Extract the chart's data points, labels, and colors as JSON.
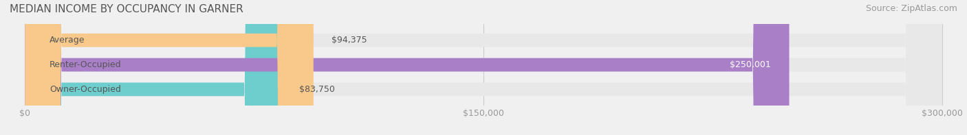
{
  "title": "MEDIAN INCOME BY OCCUPANCY IN GARNER",
  "source": "Source: ZipAtlas.com",
  "categories": [
    "Owner-Occupied",
    "Renter-Occupied",
    "Average"
  ],
  "values": [
    83750,
    250001,
    94375
  ],
  "bar_colors": [
    "#6ecece",
    "#a97fc7",
    "#f8c98a"
  ],
  "bar_edge_colors": [
    "#6ecece",
    "#a97fc7",
    "#f8c98a"
  ],
  "value_labels": [
    "$83,750",
    "$250,001",
    "$94,375"
  ],
  "xlim": [
    0,
    300000
  ],
  "xticks": [
    0,
    150000,
    300000
  ],
  "xtick_labels": [
    "$0",
    "$150,000",
    "$300,000"
  ],
  "background_color": "#f0f0f0",
  "bar_background_color": "#e8e8e8",
  "title_fontsize": 11,
  "source_fontsize": 9,
  "label_fontsize": 9,
  "tick_fontsize": 9,
  "bar_height": 0.55,
  "title_color": "#555555",
  "label_color": "#555555",
  "tick_color": "#999999",
  "source_color": "#999999",
  "value_label_color_dark": "#555555",
  "value_label_color_light": "#ffffff"
}
